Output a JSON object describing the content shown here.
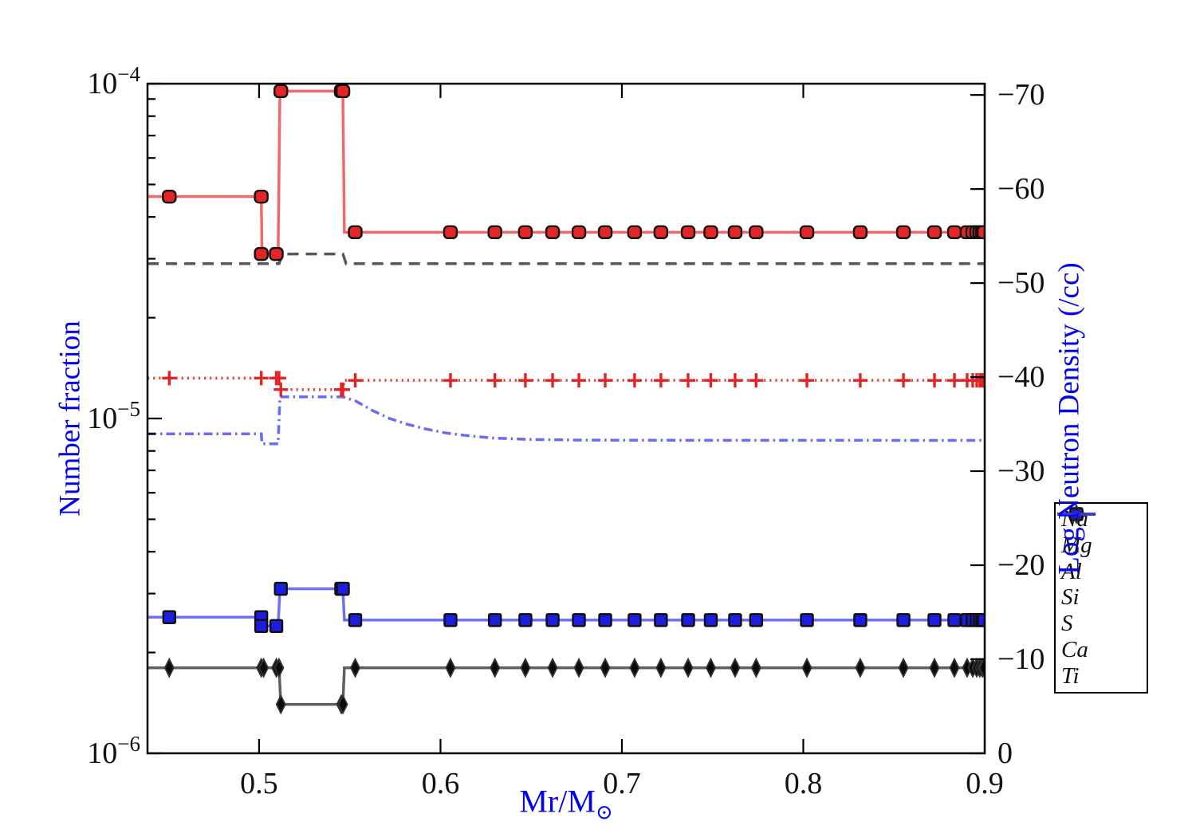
{
  "axis_labels": {
    "x_main": "Mr/M",
    "x_sub": "⊙",
    "y_left": "Number fraction",
    "y_right": "Log Neutron Density (/cc)",
    "color": "#0202ee"
  },
  "chart_data": {
    "type": "line",
    "title": "",
    "xlabel": "Mr/M☉",
    "ylabel": "Number fraction",
    "ylabel_right": "Log Neutron Density (/cc)",
    "grid": false,
    "legend_position": "outside-right",
    "x_range": [
      0.4385,
      0.9
    ],
    "x_ticks": [
      {
        "v": 0.5,
        "label": "0.5"
      },
      {
        "v": 0.6,
        "label": "0.6"
      },
      {
        "v": 0.7,
        "label": "0.7"
      },
      {
        "v": 0.8,
        "label": "0.8"
      },
      {
        "v": 0.9,
        "label": "0.9"
      }
    ],
    "y_left_axis": {
      "scale": "log",
      "range": [
        1e-06,
        0.0001
      ],
      "major_ticks": [
        {
          "v": 0.0001,
          "base": "10",
          "exp": "−4"
        },
        {
          "v": 1e-05,
          "base": "10",
          "exp": "−5"
        },
        {
          "v": 1e-06,
          "base": "10",
          "exp": "−6"
        }
      ],
      "minor_ticks": [
        2e-06,
        3e-06,
        4e-06,
        5e-06,
        6e-06,
        7e-06,
        8e-06,
        9e-06,
        2e-05,
        3e-05,
        4e-05,
        5e-05,
        6e-05,
        7e-05,
        8e-05,
        9e-05
      ]
    },
    "y_right_axis": {
      "scale": "linear",
      "range_bottom_top": [
        0,
        -71.2
      ],
      "major_ticks": [
        {
          "v": 0,
          "label": "0"
        },
        {
          "v": -10,
          "label": "−10"
        },
        {
          "v": -20,
          "label": "−20"
        },
        {
          "v": -30,
          "label": "−30"
        },
        {
          "v": -40,
          "label": "−40"
        },
        {
          "v": -50,
          "label": "−50"
        },
        {
          "v": -60,
          "label": "−60"
        },
        {
          "v": -70,
          "label": "−70"
        }
      ]
    },
    "marker_grid_x": [
      0.553,
      0.6055,
      0.63,
      0.6468,
      0.6618,
      0.6763,
      0.6908,
      0.707,
      0.7215,
      0.7365,
      0.749,
      0.7624,
      0.774,
      0.802,
      0.8314,
      0.8552,
      0.8723,
      0.8833,
      0.8903,
      0.8934,
      0.8956,
      0.8973,
      0.8987,
      0.8996
    ],
    "draw_order": [
      "Na",
      "Si",
      "S",
      "Mg",
      "Al",
      "Ca"
    ],
    "series": [
      {
        "name": "Na",
        "line": "dashdot",
        "color": "#4646f0",
        "opacity": 0.8,
        "marker": null,
        "path": [
          [
            0.4385,
            9e-06
          ],
          [
            0.5012,
            9e-06
          ],
          [
            0.5016,
            8.4e-06
          ],
          [
            0.5105,
            8.4e-06
          ],
          [
            0.5115,
            1.16e-05
          ],
          [
            0.5462,
            1.16e-05
          ],
          [
            0.553,
            1.13e-05
          ],
          [
            0.562,
            1.06e-05
          ],
          [
            0.572,
            1e-05
          ],
          [
            0.582,
            9.6e-06
          ],
          [
            0.592,
            9.3e-06
          ],
          [
            0.603,
            9.05e-06
          ],
          [
            0.614,
            8.9e-06
          ],
          [
            0.628,
            8.75e-06
          ],
          [
            0.648,
            8.66e-06
          ],
          [
            0.678,
            8.62e-06
          ],
          [
            0.72,
            8.61e-06
          ],
          [
            0.9,
            8.6e-06
          ]
        ],
        "left_markers": [],
        "flat_level": null
      },
      {
        "name": "Mg",
        "line": "solid",
        "color": "#ee2e2e",
        "opacity": 0.72,
        "marker": {
          "shape": "rounded-square",
          "fill": "#e42525",
          "edge": "#101010"
        },
        "path": [
          [
            0.4385,
            4.6e-05
          ],
          [
            0.5012,
            4.6e-05
          ],
          [
            0.5016,
            3.1e-05
          ],
          [
            0.5105,
            3.1e-05
          ],
          [
            0.5115,
            9.5e-05
          ],
          [
            0.5462,
            9.5e-05
          ],
          [
            0.547,
            3.6e-05
          ],
          [
            0.9,
            3.6e-05
          ]
        ],
        "left_markers": [
          [
            0.4505,
            4.6e-05
          ],
          [
            0.5012,
            4.6e-05
          ],
          [
            0.5012,
            3.1e-05
          ],
          [
            0.5095,
            3.1e-05
          ],
          [
            0.512,
            9.5e-05
          ],
          [
            0.5453,
            9.5e-05
          ],
          [
            0.5462,
            9.5e-05
          ]
        ],
        "flat_level": 3.6e-05
      },
      {
        "name": "Al",
        "line": "solid",
        "color": "#4646f0",
        "opacity": 0.78,
        "marker": {
          "shape": "square",
          "fill": "#1d1de0",
          "edge": "#101010"
        },
        "path": [
          [
            0.4385,
            2.55e-06
          ],
          [
            0.5012,
            2.55e-06
          ],
          [
            0.5016,
            2.4e-06
          ],
          [
            0.5105,
            2.4e-06
          ],
          [
            0.5115,
            3.1e-06
          ],
          [
            0.5462,
            3.1e-06
          ],
          [
            0.547,
            2.5e-06
          ],
          [
            0.9,
            2.5e-06
          ]
        ],
        "left_markers": [
          [
            0.4505,
            2.55e-06
          ],
          [
            0.5012,
            2.55e-06
          ],
          [
            0.5012,
            2.4e-06
          ],
          [
            0.5095,
            2.4e-06
          ],
          [
            0.512,
            3.1e-06
          ],
          [
            0.5453,
            3.1e-06
          ],
          [
            0.5462,
            3.1e-06
          ]
        ],
        "flat_level": 2.5e-06
      },
      {
        "name": "Si",
        "line": "dashed",
        "color": "#454545",
        "opacity": 0.9,
        "marker": null,
        "path": [
          [
            0.4385,
            2.9e-05
          ],
          [
            0.511,
            2.9e-05
          ],
          [
            0.513,
            3.1e-05
          ],
          [
            0.5462,
            3.1e-05
          ],
          [
            0.548,
            2.9e-05
          ],
          [
            0.9,
            2.9e-05
          ]
        ],
        "left_markers": [],
        "flat_level": null
      },
      {
        "name": "S",
        "line": "dotted",
        "color": "#e32424",
        "opacity": 0.85,
        "marker": {
          "shape": "plus",
          "fill": "#e32424",
          "edge": "#e32424"
        },
        "path": [
          [
            0.4385,
            1.32e-05
          ],
          [
            0.511,
            1.32e-05
          ],
          [
            0.512,
            1.22e-05
          ],
          [
            0.5462,
            1.22e-05
          ],
          [
            0.547,
            1.3e-05
          ],
          [
            0.9,
            1.3e-05
          ]
        ],
        "left_markers": [
          [
            0.4505,
            1.32e-05
          ],
          [
            0.5012,
            1.32e-05
          ],
          [
            0.5095,
            1.32e-05
          ],
          [
            0.511,
            1.32e-05
          ],
          [
            0.512,
            1.22e-05
          ],
          [
            0.5453,
            1.22e-05
          ],
          [
            0.5462,
            1.22e-05
          ]
        ],
        "flat_level": 1.3e-05
      },
      {
        "name": "Ca",
        "line": "solid",
        "color": "#383838",
        "opacity": 0.8,
        "marker": {
          "shape": "diamond",
          "fill": "#0b0b0b",
          "edge": "#333333"
        },
        "path": [
          [
            0.4385,
            1.8e-06
          ],
          [
            0.511,
            1.8e-06
          ],
          [
            0.512,
            1.4e-06
          ],
          [
            0.5462,
            1.4e-06
          ],
          [
            0.547,
            1.8e-06
          ],
          [
            0.9,
            1.8e-06
          ]
        ],
        "left_markers": [
          [
            0.4505,
            1.8e-06
          ],
          [
            0.5012,
            1.8e-06
          ],
          [
            0.5025,
            1.8e-06
          ],
          [
            0.5095,
            1.8e-06
          ],
          [
            0.511,
            1.8e-06
          ],
          [
            0.512,
            1.4e-06
          ],
          [
            0.5453,
            1.4e-06
          ],
          [
            0.5462,
            1.4e-06
          ]
        ],
        "flat_level": 1.8e-06
      },
      {
        "name": "Ti",
        "line": "solid",
        "color": "#3a3af0",
        "opacity": 0.85,
        "marker": {
          "shape": "dot",
          "fill": "#2424e0",
          "edge": "#2424e0"
        },
        "path": [],
        "left_markers": [],
        "flat_level": null,
        "visible_in_range": false
      }
    ],
    "legend_order": [
      "Na",
      "Mg",
      "Al",
      "Si",
      "S",
      "Ca",
      "Ti"
    ]
  }
}
